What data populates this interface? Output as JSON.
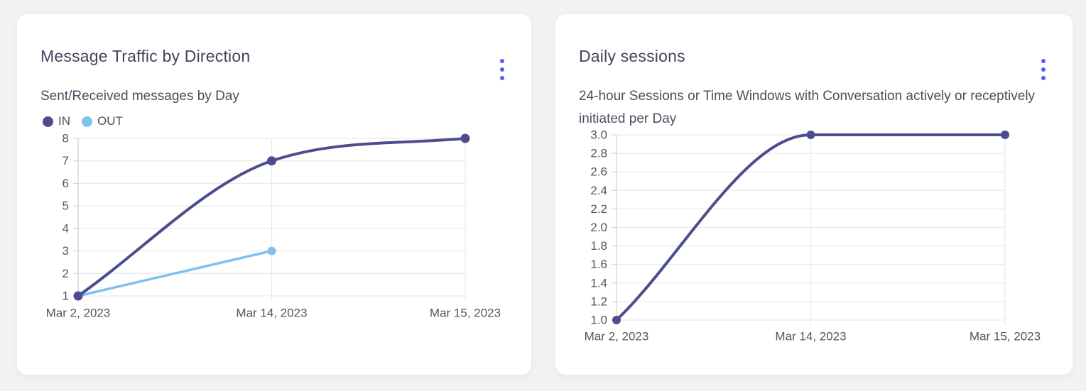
{
  "page": {
    "background": "#f1f2f4"
  },
  "colors": {
    "accent": "#5b5bf2",
    "card_background": "#ffffff",
    "title_text": "#42455c",
    "subtitle_text": "#4a4d5e",
    "tick_text": "#54565e",
    "gridline": "#e9e9ec",
    "axis_line": "#d3d4d8",
    "series_in": "#4b4d8f",
    "series_out": "#7ec2ef"
  },
  "cards": [
    {
      "menu_icon": "kebab-menu-icon"
    },
    {
      "menu_icon": "kebab-menu-icon"
    }
  ],
  "chart_data": [
    {
      "type": "line",
      "title": "Message Traffic by Direction",
      "subtitle": "Sent/Received messages by Day",
      "categories": [
        "Mar 2, 2023",
        "Mar 14, 2023",
        "Mar 15, 2023"
      ],
      "series": [
        {
          "name": "IN",
          "values": [
            1,
            7,
            8
          ],
          "color": "#4b4d8f",
          "line_width": 4,
          "point_radius": 6.5
        },
        {
          "name": "OUT",
          "values": [
            1,
            3,
            null
          ],
          "color": "#7ec2ef",
          "line_width": 3.5,
          "point_radius": 6
        }
      ],
      "y_tick_labels": [
        "1",
        "2",
        "3",
        "4",
        "5",
        "6",
        "7",
        "8"
      ],
      "ylim": [
        1,
        8
      ],
      "xlabel": "",
      "ylabel": "",
      "legend": [
        "IN",
        "OUT"
      ],
      "legend_position": "top-left",
      "grid": true,
      "smoothing": "monotone"
    },
    {
      "type": "line",
      "title": "Daily sessions",
      "subtitle": "24-hour Sessions or Time Windows with Conversation actively or receptively initiated per Day",
      "categories": [
        "Mar 2, 2023",
        "Mar 14, 2023",
        "Mar 15, 2023"
      ],
      "series": [
        {
          "name": "Daily sessions",
          "values": [
            1,
            3,
            3
          ],
          "color": "#4b4d8f",
          "line_width": 4,
          "point_radius": 6
        }
      ],
      "y_tick_labels": [
        "1.0",
        "1.2",
        "1.4",
        "1.6",
        "1.8",
        "2.0",
        "2.2",
        "2.4",
        "2.6",
        "2.8",
        "3.0"
      ],
      "ylim": [
        1,
        3
      ],
      "xlabel": "",
      "ylabel": "",
      "legend": [],
      "legend_position": "none",
      "grid": true,
      "smoothing": "monotone"
    }
  ]
}
